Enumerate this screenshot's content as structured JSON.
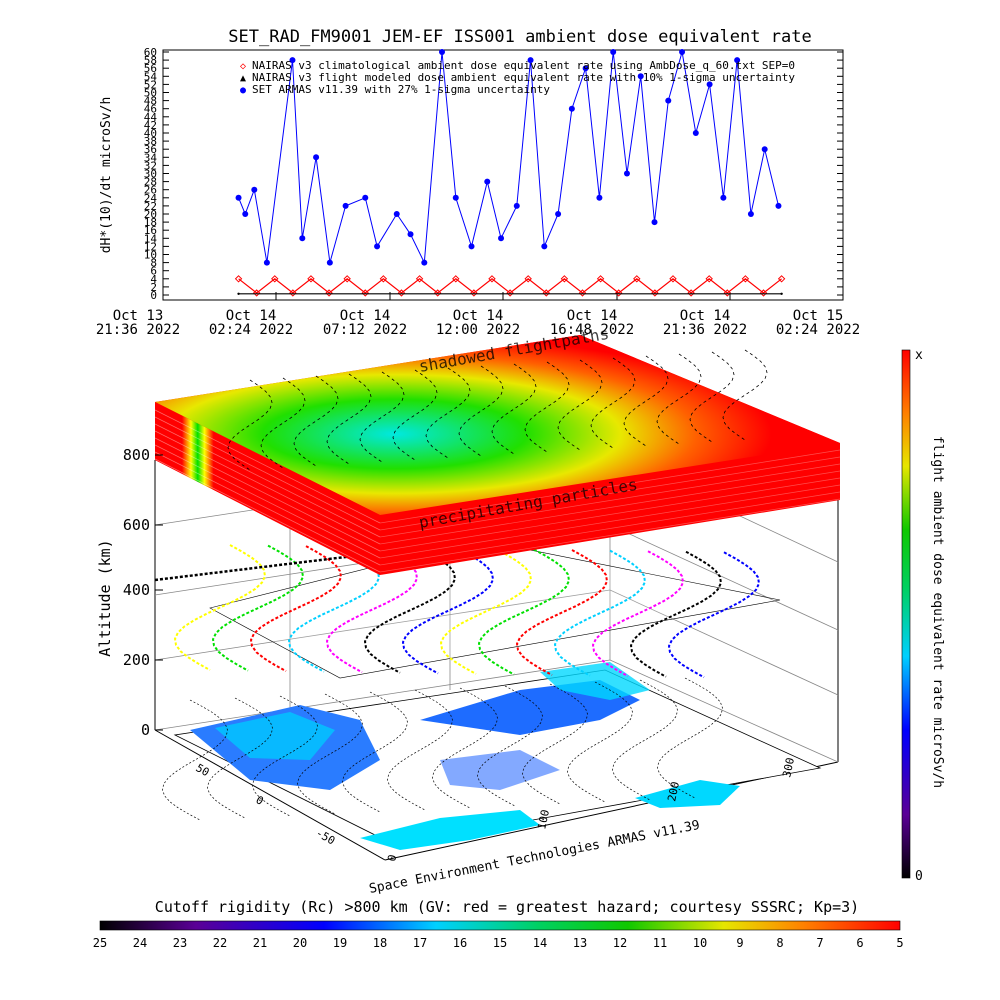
{
  "top_chart": {
    "title": "SET_RAD_FM9001  JEM-EF ISS001 ambient dose equivalent rate",
    "ylabel": "dH*(10)/dt microSv/h",
    "y_ticks": [
      "0",
      "2",
      "4",
      "6",
      "8",
      "10",
      "12",
      "14",
      "16",
      "18",
      "20",
      "22",
      "24",
      "26",
      "28",
      "30",
      "32",
      "34",
      "36",
      "38",
      "40",
      "42",
      "44",
      "46",
      "48",
      "50",
      "52",
      "54",
      "56",
      "58",
      "60"
    ],
    "x_ticks": [
      {
        "line1": "Oct 13",
        "line2": "21:36 2022"
      },
      {
        "line1": "Oct 14",
        "line2": "02:24 2022"
      },
      {
        "line1": "Oct 14",
        "line2": "07:12 2022"
      },
      {
        "line1": "Oct 14",
        "line2": "12:00 2022"
      },
      {
        "line1": "Oct 14",
        "line2": "16:48 2022"
      },
      {
        "line1": "Oct 14",
        "line2": "21:36 2022"
      },
      {
        "line1": "Oct 15",
        "line2": "02:24 2022"
      }
    ],
    "legend": [
      {
        "marker": "◇",
        "color": "#ff0000",
        "text": "NAIRAS v3 climatological ambient dose equivalent rate using AmbDose_q_60.txt SEP=0"
      },
      {
        "marker": "▲",
        "color": "#000000",
        "text": "NAIRAS v3 flight modeled dose ambient equivalent rate with 10% 1-sigma uncertainty"
      },
      {
        "marker": "●",
        "color": "#0000ff",
        "text": "SET ARMAS v11.39 with 27% 1-sigma uncertainty"
      }
    ]
  },
  "chart_data": [
    {
      "type": "line",
      "title": "SET_RAD_FM9001  JEM-EF ISS001 ambient dose equivalent rate",
      "xlabel": "",
      "ylabel": "dH*(10)/dt microSv/h",
      "xlim": [
        "2022-10-13 21:36",
        "2022-10-15 02:24"
      ],
      "ylim": [
        0,
        60
      ],
      "grid": false,
      "legend": "top",
      "series": [
        {
          "name": "SET ARMAS v11.39 with 27% 1-sigma uncertainty",
          "color": "#0000ff",
          "x": [
            "2022-10-14 00:48",
            "2022-10-14 01:05",
            "2022-10-14 01:28",
            "2022-10-14 02:00",
            "2022-10-14 03:05",
            "2022-10-14 03:30",
            "2022-10-14 04:05",
            "2022-10-14 04:40",
            "2022-10-14 05:20",
            "2022-10-14 06:10",
            "2022-10-14 06:40",
            "2022-10-14 07:30",
            "2022-10-14 08:05",
            "2022-10-14 08:40",
            "2022-10-14 09:25",
            "2022-10-14 10:00",
            "2022-10-14 10:40",
            "2022-10-14 11:20",
            "2022-10-14 11:55",
            "2022-10-14 12:35",
            "2022-10-14 13:10",
            "2022-10-14 13:45",
            "2022-10-14 14:20",
            "2022-10-14 14:55",
            "2022-10-14 15:30",
            "2022-10-14 16:05",
            "2022-10-14 16:40",
            "2022-10-14 17:15",
            "2022-10-14 17:50",
            "2022-10-14 18:25",
            "2022-10-14 19:00",
            "2022-10-14 19:35",
            "2022-10-14 20:10",
            "2022-10-14 20:45",
            "2022-10-14 21:20",
            "2022-10-14 21:55",
            "2022-10-14 22:30",
            "2022-10-14 23:05",
            "2022-10-14 23:40"
          ],
          "values": [
            24,
            20,
            26,
            8,
            58,
            14,
            34,
            8,
            22,
            24,
            12,
            20,
            15,
            8,
            60,
            24,
            12,
            28,
            14,
            22,
            58,
            12,
            20,
            46,
            56,
            24,
            60,
            30,
            54,
            18,
            48,
            60,
            40,
            52,
            24,
            58,
            20,
            36,
            22
          ]
        },
        {
          "name": "NAIRAS v3 climatological ambient dose equivalent rate using AmbDose_q_60.txt SEP=0",
          "color": "#ff0000",
          "x": [
            "2022-10-14 00:48",
            "2022-10-14 01:34",
            "2022-10-14 02:20",
            "2022-10-14 03:06",
            "2022-10-14 03:52",
            "2022-10-14 04:38",
            "2022-10-14 05:24",
            "2022-10-14 06:10",
            "2022-10-14 06:56",
            "2022-10-14 07:42",
            "2022-10-14 08:28",
            "2022-10-14 09:14",
            "2022-10-14 10:00",
            "2022-10-14 10:46",
            "2022-10-14 11:32",
            "2022-10-14 12:18",
            "2022-10-14 13:04",
            "2022-10-14 13:50",
            "2022-10-14 14:36",
            "2022-10-14 15:22",
            "2022-10-14 16:08",
            "2022-10-14 16:54",
            "2022-10-14 17:40",
            "2022-10-14 18:26",
            "2022-10-14 19:12",
            "2022-10-14 19:58",
            "2022-10-14 20:44",
            "2022-10-14 21:30",
            "2022-10-14 22:16",
            "2022-10-14 23:02",
            "2022-10-14 23:48"
          ],
          "values": [
            4,
            0.5,
            4,
            0.5,
            4,
            0.5,
            4,
            0.5,
            4,
            0.5,
            4,
            0.5,
            4,
            0.5,
            4,
            0.5,
            4,
            0.5,
            4,
            0.5,
            4,
            0.5,
            4,
            0.5,
            4,
            0.5,
            4,
            0.5,
            4,
            0.5,
            4
          ]
        },
        {
          "name": "NAIRAS v3 flight modeled dose ambient equivalent rate with 10% 1-sigma uncertainty",
          "color": "#000000",
          "x": [
            "2022-10-14 00:48",
            "2022-10-14 23:48"
          ],
          "values": [
            0.3,
            0.3
          ]
        }
      ]
    },
    {
      "type": "heatmap",
      "title": "",
      "xlabel": "",
      "ylabel": "Altitude (km)",
      "z_ticks": [
        "0",
        "200",
        "400",
        "600",
        "800"
      ],
      "colorbar_label": "flight ambient dose equivalent rate microSv/h",
      "colorbar_range": [
        "0",
        "x"
      ]
    }
  ],
  "scene3d": {
    "zlabel": "Altitude (km)",
    "z_ticks": [
      "0",
      "200",
      "400",
      "600",
      "800"
    ],
    "lon_ticks": [
      "0",
      "100",
      "200",
      "300"
    ],
    "lat_ticks": [
      "50",
      "0",
      "-50"
    ],
    "layer_label_top": "shadowed flightpaths",
    "layer_label_mid": "precipitating particles",
    "credit": "Space Environment Technologies ARMAS v11.39"
  },
  "right_colorbar": {
    "label": "flight ambient dose equivalent rate microSv/h",
    "top_label": "x",
    "bottom_label": "0"
  },
  "bottom_colorbar": {
    "title": "Cutoff rigidity (Rc) >800 km (GV: red = greatest hazard; courtesy SSSRC; Kp=3)",
    "ticks": [
      "25",
      "24",
      "23",
      "22",
      "21",
      "20",
      "19",
      "18",
      "17",
      "16",
      "15",
      "14",
      "13",
      "12",
      "11",
      "10",
      "9",
      "8",
      "7",
      "6",
      "5"
    ]
  },
  "colors": {
    "blue_series": "#0000ff",
    "red_series": "#ff0000",
    "black_series": "#000000"
  }
}
